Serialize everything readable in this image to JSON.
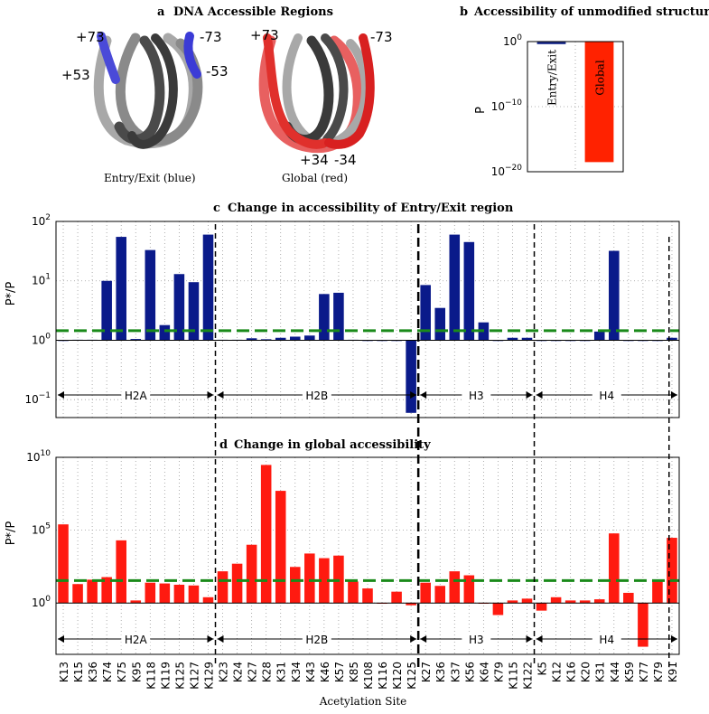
{
  "panel_a": {
    "title": "DNA Accessible Regions",
    "letter": "a",
    "left_caption": "Entry/Exit (blue)",
    "right_caption": "Global (red)",
    "left_labels": [
      "+73",
      "-73",
      "+53",
      "-53"
    ],
    "right_labels": [
      "+73",
      "-73",
      "+34",
      "-34"
    ],
    "colors": {
      "blue": "#3b3bd6",
      "red": "#e0302c",
      "dark": "#3a3a3a",
      "light": "#a8a8a8"
    }
  },
  "chart_data": [
    {
      "id": "b",
      "letter": "b",
      "type": "bar",
      "title": "Accessibility of unmodified structure",
      "ylabel": "P",
      "yscale": "log",
      "ylim": [
        1e-20,
        1
      ],
      "yticks": [
        {
          "value": 1,
          "label": "10",
          "exp": "0"
        },
        {
          "value": 1e-10,
          "label": "10",
          "exp": "−10"
        },
        {
          "value": 1e-20,
          "label": "10",
          "exp": "−20"
        }
      ],
      "categories": [
        "Entry/Exit",
        "Global"
      ],
      "values": [
        0.4,
        3e-19
      ],
      "colors": [
        "#1a2a8a",
        "#ff2200"
      ]
    },
    {
      "id": "c",
      "letter": "c",
      "type": "bar",
      "title": "Change in accessibility of Entry/Exit region",
      "ylabel": "P*/P",
      "yscale": "log",
      "ylim": [
        0.05,
        100
      ],
      "yticks": [
        {
          "value": 100,
          "label": "10",
          "exp": "2"
        },
        {
          "value": 10,
          "label": "10",
          "exp": "1"
        },
        {
          "value": 1,
          "label": "10",
          "exp": "0"
        },
        {
          "value": 0.1,
          "label": "10",
          "exp": "−1"
        }
      ],
      "threshold": 1.45,
      "color": "#0a1a8a",
      "categories": [
        "K13",
        "K15",
        "K36",
        "K74",
        "K75",
        "K95",
        "K118",
        "K119",
        "K125",
        "K127",
        "K129",
        "K23",
        "K24",
        "K27",
        "K28",
        "K31",
        "K34",
        "K43",
        "K46",
        "K57",
        "K85",
        "K108",
        "K116",
        "K120",
        "K125",
        "K27",
        "K36",
        "K37",
        "K56",
        "K64",
        "K79",
        "K115",
        "K122",
        "K5",
        "K12",
        "K16",
        "K20",
        "K31",
        "K44",
        "K59",
        "K77",
        "K79",
        "K91"
      ],
      "values": [
        1.0,
        1.02,
        1.02,
        10,
        55,
        1.05,
        33,
        1.8,
        13,
        9.5,
        60,
        1.02,
        1.02,
        1.08,
        1.04,
        1.1,
        1.15,
        1.2,
        6.0,
        6.3,
        1.02,
        1.0,
        1.0,
        1.0,
        0.06,
        8.5,
        3.5,
        60,
        45,
        2.0,
        1.0,
        1.1,
        1.1,
        1.0,
        1.0,
        1.0,
        1.0,
        1.4,
        32,
        1.0,
        1.0,
        1.0,
        1.1
      ],
      "groups": [
        {
          "name": "H2A",
          "start": 0,
          "end": 10
        },
        {
          "name": "H2B",
          "start": 11,
          "end": 24
        },
        {
          "name": "H3",
          "start": 25,
          "end": 32
        },
        {
          "name": "H4",
          "start": 33,
          "end": 42
        }
      ]
    },
    {
      "id": "d",
      "letter": "d",
      "type": "bar",
      "title": "Change in global accessibility",
      "ylabel": "P*/P",
      "xlabel": "Acetylation Site",
      "yscale": "log",
      "ylim": [
        0.0003,
        10000000000.0
      ],
      "yticks": [
        {
          "value": 10000000000.0,
          "label": "10",
          "exp": "10"
        },
        {
          "value": 100000.0,
          "label": "10",
          "exp": "5"
        },
        {
          "value": 1,
          "label": "10",
          "exp": "0"
        }
      ],
      "threshold": 35,
      "color": "#ff1a10",
      "categories": [
        "K13",
        "K15",
        "K36",
        "K74",
        "K75",
        "K95",
        "K118",
        "K119",
        "K125",
        "K127",
        "K129",
        "K23",
        "K24",
        "K27",
        "K28",
        "K31",
        "K34",
        "K43",
        "K46",
        "K57",
        "K85",
        "K108",
        "K116",
        "K120",
        "K125",
        "K27",
        "K36",
        "K37",
        "K56",
        "K64",
        "K79",
        "K115",
        "K122",
        "K5",
        "K12",
        "K16",
        "K20",
        "K31",
        "K44",
        "K59",
        "K77",
        "K79",
        "K91"
      ],
      "values": [
        250000,
        20,
        40,
        60,
        20000,
        1.5,
        25,
        22,
        18,
        16,
        2.5,
        150,
        500,
        10000,
        3000000000.0,
        50000000,
        300,
        2500,
        1200,
        1800,
        30,
        10,
        1.0,
        6,
        0.7,
        25,
        15,
        150,
        80,
        0.95,
        0.15,
        1.5,
        2.0,
        0.3,
        2.5,
        1.5,
        1.5,
        1.8,
        60000,
        5,
        0.001,
        35,
        30000
      ],
      "groups": [
        {
          "name": "H2A",
          "start": 0,
          "end": 10
        },
        {
          "name": "H2B",
          "start": 11,
          "end": 24
        },
        {
          "name": "H3",
          "start": 25,
          "end": 32
        },
        {
          "name": "H4",
          "start": 33,
          "end": 42
        }
      ]
    }
  ]
}
